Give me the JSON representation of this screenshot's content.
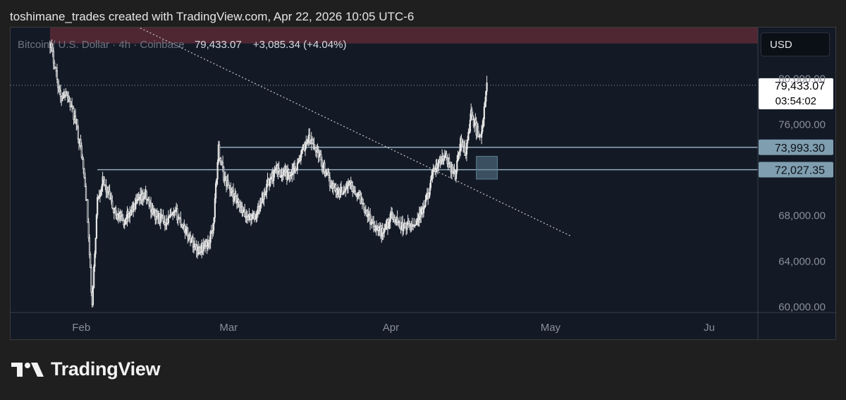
{
  "header": {
    "caption": "toshimane_trades created with TradingView.com, Apr 22, 2026 10:05 UTC-6"
  },
  "toolbar": {
    "symbol_description": "Bitcoin / U.S. Dollar · 4h · Coinbase",
    "last_price": "79,433.07",
    "change": "+3,085.34 (+4.04%)",
    "currency": "USD"
  },
  "price_scale": {
    "current_price_label": "79,433.07",
    "countdown": "03:54:02",
    "top_partial_label": "80,000.00"
  },
  "footer": {
    "brand": "TradingView"
  },
  "colors": {
    "background": "#131a26",
    "candle": "#e6e6e6",
    "level_line": "#9fb6c8",
    "level_label_bg": "#7f9eb0",
    "trendline": "#c8c8c8",
    "resistance_zone": "#5a2a36",
    "box": "#5b7d90"
  },
  "chart_data": {
    "type": "candlestick",
    "symbol": "Bitcoin / U.S. Dollar",
    "interval": "4h",
    "exchange": "Coinbase",
    "x_ticks": [
      "Feb",
      "Mar",
      "Apr",
      "May",
      "Ju"
    ],
    "y_ticks": [
      60000,
      64000,
      68000,
      76000
    ],
    "y_tick_labels": [
      "60,000.00",
      "64,000.00",
      "68,000.00",
      "76,000.00"
    ],
    "ylim": [
      59500,
      84500
    ],
    "horizontal_levels": [
      {
        "value": 73993.3,
        "label": "73,993.30",
        "start_date": "2026-03-02"
      },
      {
        "value": 72027.35,
        "label": "72,027.35",
        "start_date": "2026-02-07"
      }
    ],
    "current_price": 79433.07,
    "trendline": {
      "start": {
        "date": "2026-01-19",
        "value": 90500
      },
      "end": {
        "date": "2026-05-08",
        "value": 66200
      }
    },
    "resistance_zone": {
      "start_date": "2026-01-29",
      "low": 83100,
      "high": 84500
    },
    "highlight_box": {
      "start_date": "2026-04-20",
      "end_date": "2026-04-24",
      "low": 71200,
      "high": 73200
    },
    "path_points": [
      [
        "2026-01-29",
        83200
      ],
      [
        "2026-01-30",
        81000
      ],
      [
        "2026-01-31",
        78200
      ],
      [
        "2026-02-01",
        79000
      ],
      [
        "2026-02-02",
        77500
      ],
      [
        "2026-02-03",
        76000
      ],
      [
        "2026-02-04",
        73500
      ],
      [
        "2026-02-05",
        69000
      ],
      [
        "2026-02-06",
        60000
      ],
      [
        "2026-02-07",
        69500
      ],
      [
        "2026-02-08",
        71000
      ],
      [
        "2026-02-09",
        70000
      ],
      [
        "2026-02-10",
        68500
      ],
      [
        "2026-02-12",
        67500
      ],
      [
        "2026-02-14",
        68800
      ],
      [
        "2026-02-16",
        69800
      ],
      [
        "2026-02-18",
        68000
      ],
      [
        "2026-02-20",
        67500
      ],
      [
        "2026-02-22",
        68200
      ],
      [
        "2026-02-24",
        66500
      ],
      [
        "2026-02-26",
        65000
      ],
      [
        "2026-02-28",
        65500
      ],
      [
        "2026-03-01",
        67000
      ],
      [
        "2026-03-02",
        73800
      ],
      [
        "2026-03-03",
        71500
      ],
      [
        "2026-03-05",
        69500
      ],
      [
        "2026-03-07",
        68000
      ],
      [
        "2026-03-09",
        67800
      ],
      [
        "2026-03-11",
        70500
      ],
      [
        "2026-03-13",
        72000
      ],
      [
        "2026-03-15",
        71500
      ],
      [
        "2026-03-17",
        72500
      ],
      [
        "2026-03-19",
        74800
      ],
      [
        "2026-03-21",
        73500
      ],
      [
        "2026-03-23",
        71000
      ],
      [
        "2026-03-25",
        70000
      ],
      [
        "2026-03-27",
        70800
      ],
      [
        "2026-03-29",
        69500
      ],
      [
        "2026-03-31",
        67500
      ],
      [
        "2026-04-02",
        66500
      ],
      [
        "2026-04-04",
        68000
      ],
      [
        "2026-04-06",
        67000
      ],
      [
        "2026-04-08",
        67200
      ],
      [
        "2026-04-10",
        68500
      ],
      [
        "2026-04-12",
        72000
      ],
      [
        "2026-04-14",
        73200
      ],
      [
        "2026-04-16",
        71600
      ],
      [
        "2026-04-17",
        74500
      ],
      [
        "2026-04-18",
        73500
      ],
      [
        "2026-04-19",
        77000
      ],
      [
        "2026-04-20",
        75500
      ],
      [
        "2026-04-21",
        75000
      ],
      [
        "2026-04-22",
        79433
      ]
    ]
  }
}
